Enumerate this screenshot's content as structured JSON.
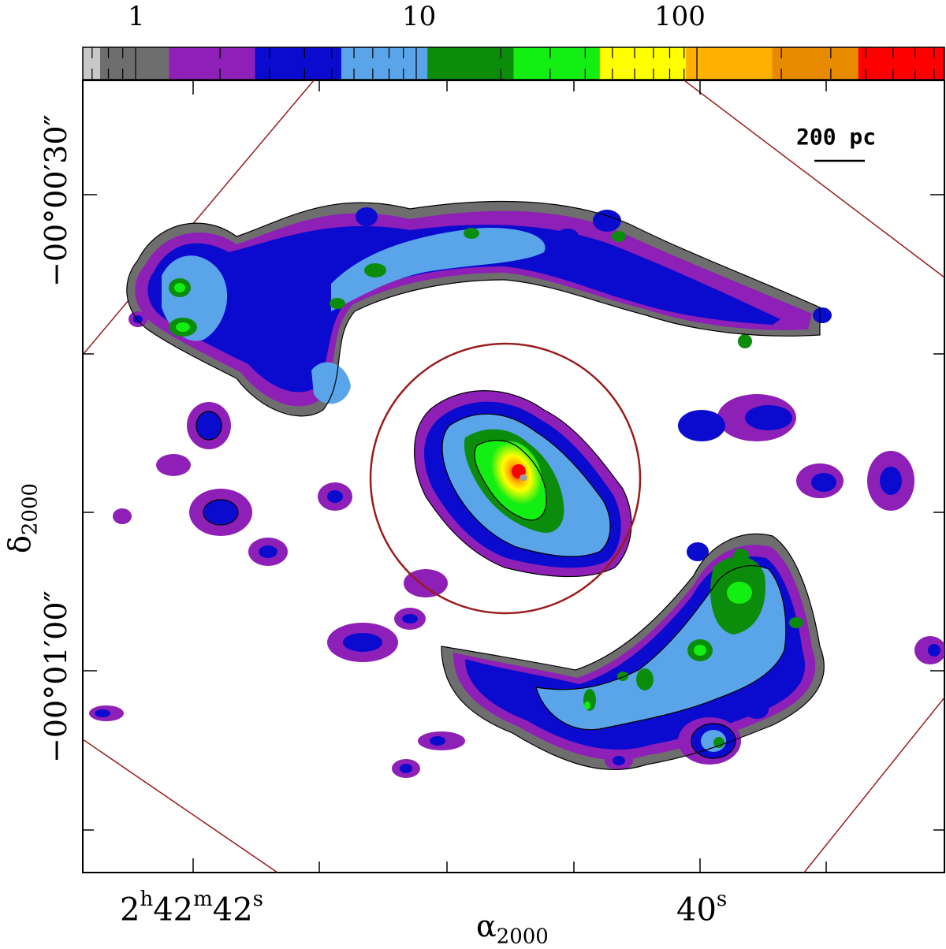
{
  "colorbar": {
    "tick_labels": [
      "1",
      "10",
      "100"
    ],
    "colors": [
      "#6e6e6e",
      "#8e1fb7",
      "#0b0bd0",
      "#5aa5ea",
      "#0b8d0b",
      "#13ef13",
      "#ffff00",
      "#ffb000",
      "#e88a00",
      "#ff0000"
    ],
    "colors_named": [
      "grey",
      "purple",
      "blue",
      "light-blue",
      "dark-green",
      "green",
      "yellow",
      "orange",
      "dark-orange",
      "red"
    ]
  },
  "scale_bar": {
    "label": "200 pc"
  },
  "axes": {
    "dec": {
      "label": "δ",
      "label_sub": "2000",
      "tick_labels": [
        "−00°00′30″",
        "−00°01′00″"
      ]
    },
    "ra": {
      "label": "α",
      "label_sub": "2000",
      "tick_labels": [
        {
          "h": "2",
          "h_unit": "h",
          "m": "42",
          "m_unit": "m",
          "s": "42",
          "s_unit": "s"
        },
        {
          "s": "40",
          "s_unit": "s"
        }
      ]
    }
  },
  "overlays": {
    "circle_color": "#9b1b1b",
    "field_edge_color": "#9b1b1b"
  }
}
